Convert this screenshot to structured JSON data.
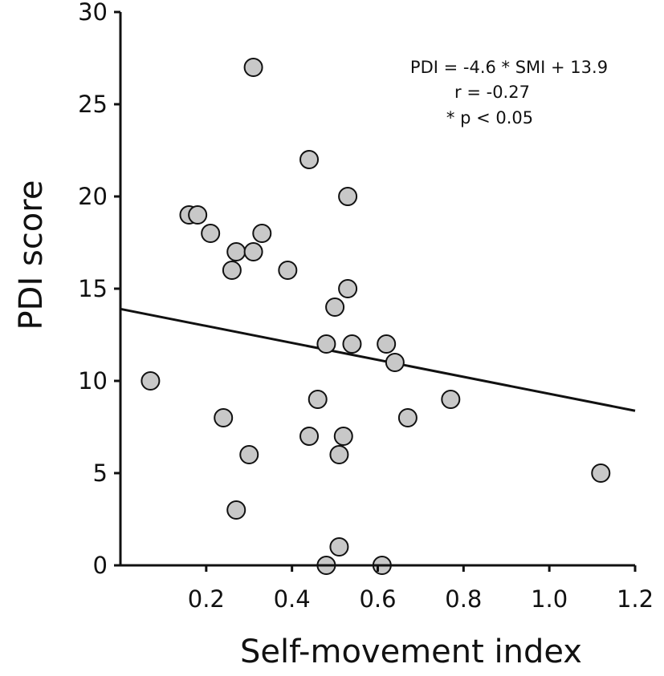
{
  "chart_data": {
    "type": "scatter",
    "title": "",
    "xlabel": "Self-movement index",
    "ylabel": "PDI score",
    "xlim": [
      0,
      1.2
    ],
    "ylim": [
      0,
      30
    ],
    "xticks": [
      0.2,
      0.4,
      0.6,
      0.8,
      1.0,
      1.2
    ],
    "xtick_labels": [
      "0.2",
      "0.4",
      "0.6",
      "0.8",
      "1.0",
      "1.2"
    ],
    "yticks": [
      0,
      5,
      10,
      15,
      20,
      25,
      30
    ],
    "ytick_labels": [
      "0",
      "5",
      "10",
      "15",
      "20",
      "25",
      "30"
    ],
    "grid": false,
    "marker_color": "#c8c8c8",
    "marker_edge_color": "#111111",
    "points": [
      {
        "x": 0.31,
        "y": 27
      },
      {
        "x": 0.44,
        "y": 22
      },
      {
        "x": 0.53,
        "y": 20
      },
      {
        "x": 0.16,
        "y": 19
      },
      {
        "x": 0.18,
        "y": 19
      },
      {
        "x": 0.21,
        "y": 18
      },
      {
        "x": 0.33,
        "y": 18
      },
      {
        "x": 0.27,
        "y": 17
      },
      {
        "x": 0.31,
        "y": 17
      },
      {
        "x": 0.26,
        "y": 16
      },
      {
        "x": 0.39,
        "y": 16
      },
      {
        "x": 0.53,
        "y": 15
      },
      {
        "x": 0.5,
        "y": 14
      },
      {
        "x": 0.48,
        "y": 12
      },
      {
        "x": 0.54,
        "y": 12
      },
      {
        "x": 0.62,
        "y": 12
      },
      {
        "x": 0.64,
        "y": 11
      },
      {
        "x": 0.07,
        "y": 10
      },
      {
        "x": 0.46,
        "y": 9
      },
      {
        "x": 0.77,
        "y": 9
      },
      {
        "x": 0.24,
        "y": 8
      },
      {
        "x": 0.67,
        "y": 8
      },
      {
        "x": 0.44,
        "y": 7
      },
      {
        "x": 0.52,
        "y": 7
      },
      {
        "x": 0.3,
        "y": 6
      },
      {
        "x": 0.51,
        "y": 6
      },
      {
        "x": 1.12,
        "y": 5
      },
      {
        "x": 0.27,
        "y": 3
      },
      {
        "x": 0.51,
        "y": 1
      },
      {
        "x": 0.48,
        "y": 0
      },
      {
        "x": 0.61,
        "y": 0
      }
    ],
    "fit_line": {
      "slope": -4.6,
      "intercept": 13.9
    },
    "annotations": [
      "PDI = -4.6 * SMI + 13.9",
      "r = -0.27",
      "* p < 0.05"
    ]
  }
}
